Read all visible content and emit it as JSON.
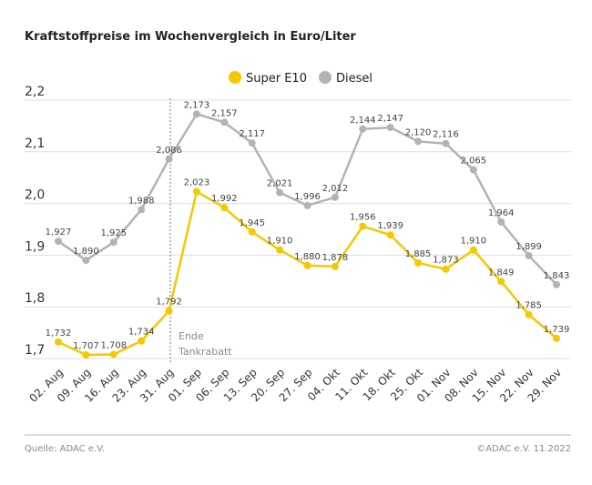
{
  "chart_data": {
    "type": "line",
    "title": "Kraftstoffpreise im Wochenvergleich in Euro/Liter",
    "categories": [
      "02. Aug",
      "09. Aug",
      "16. Aug",
      "23. Aug",
      "31. Aug",
      "01. Sep",
      "06. Sep",
      "13. Sep",
      "20. Sep",
      "27. Sep",
      "04. Okt",
      "11. Okt",
      "18. Okt",
      "25. Okt",
      "01. Nov",
      "08. Nov",
      "15. Nov",
      "22. Nov",
      "29. Nov"
    ],
    "series": [
      {
        "name": "Super E10",
        "color": "#f5c800",
        "values": [
          1.732,
          1.707,
          1.708,
          1.734,
          1.792,
          2.023,
          1.992,
          1.945,
          1.91,
          1.88,
          1.878,
          1.956,
          1.939,
          1.885,
          1.873,
          1.91,
          1.849,
          1.785,
          1.739
        ]
      },
      {
        "name": "Diesel",
        "color": "#b3b3b3",
        "values": [
          1.927,
          1.89,
          1.925,
          1.988,
          2.086,
          2.173,
          2.157,
          2.117,
          2.021,
          1.996,
          2.012,
          2.144,
          2.147,
          2.12,
          2.116,
          2.065,
          1.964,
          1.899,
          1.843
        ]
      }
    ],
    "ylim": [
      1.7,
      2.2
    ],
    "yticks": [
      "1,7",
      "1,8",
      "1,9",
      "2,0",
      "2,1",
      "2,2"
    ],
    "grid": true,
    "legend_placement": "top-center",
    "annotation": {
      "category": "31. Aug",
      "lines": [
        "Ende",
        "Tankrabatt"
      ]
    }
  },
  "footer": {
    "source": "Quelle: ADAC e.V.",
    "copyright": "©ADAC e.V.  11.2022"
  }
}
